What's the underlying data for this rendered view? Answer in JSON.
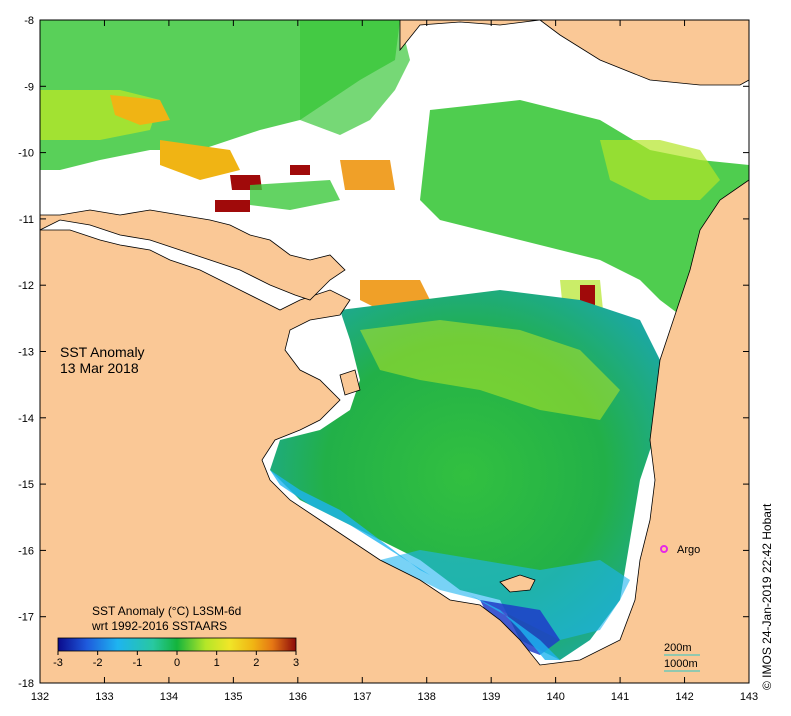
{
  "map": {
    "title_line1": "SST Anomaly",
    "title_line2": "13 Mar 2018",
    "lon_ticks": [
      "132",
      "133",
      "134",
      "135",
      "136",
      "137",
      "138",
      "139",
      "140",
      "141",
      "142",
      "143"
    ],
    "lat_ticks": [
      "-8",
      "-9",
      "-10",
      "-11",
      "-12",
      "-13",
      "-14",
      "-15",
      "-16",
      "-17",
      "-18"
    ],
    "colorbar": {
      "title_line1": "SST Anomaly  (°C) L3SM-6d",
      "title_line2": "wrt 1992-2016 SSTAARS",
      "ticks": [
        "-3",
        "-2",
        "-1",
        "0",
        "1",
        "2",
        "3"
      ],
      "colors": [
        "#0a0a8c",
        "#1e5adc",
        "#1eb4f0",
        "#28c8a0",
        "#14b43c",
        "#3cc83c",
        "#b4e628",
        "#f0e628",
        "#f0b414",
        "#e67814",
        "#c83c14",
        "#8c0a0a"
      ]
    },
    "argo_label": "Argo",
    "contour_legend": [
      "200m",
      "1000m"
    ],
    "credit": "© IMOS 24-Jan-2019 22:42 Hobart",
    "colors": {
      "land": "#fac896",
      "ocean_nodata": "#ffffff",
      "anomaly_green": "#3cc83c",
      "anomaly_cyan": "#1eb4f0",
      "anomaly_blue": "#1e3cc8",
      "anomaly_orange": "#f0a028",
      "anomaly_red": "#a00a0a",
      "argo_marker": "#e628e6"
    }
  }
}
